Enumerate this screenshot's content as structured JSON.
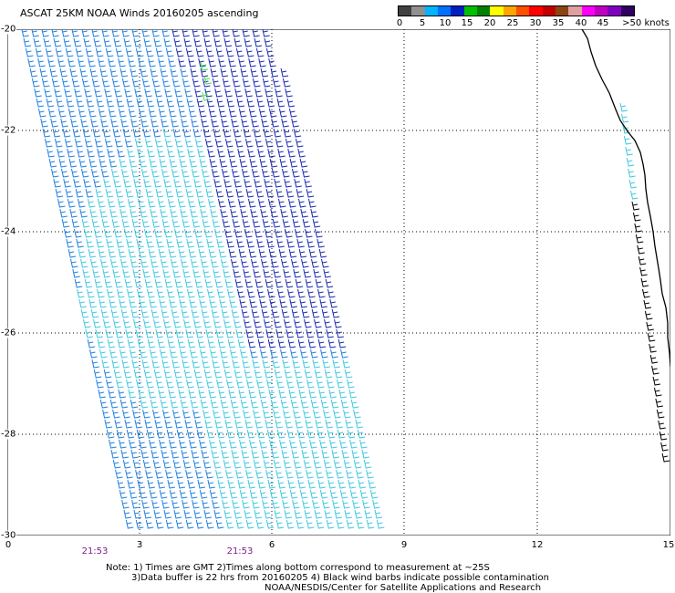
{
  "header": {
    "title": "ASCAT 25KM NOAA Winds 20160205 ascending",
    "scale_colors": [
      "#404040",
      "#909090",
      "#00b4ff",
      "#0070ff",
      "#0020c0",
      "#00c000",
      "#008000",
      "#ffff00",
      "#ffa500",
      "#ff5000",
      "#ff0000",
      "#c00000",
      "#8b4513",
      "#e0a0a0",
      "#ff00ff",
      "#c000c0",
      "#8000c0",
      "#300060"
    ],
    "scale_labels": [
      "0",
      "5",
      "10",
      "15",
      "20",
      "25",
      "30",
      "35",
      "40",
      "45",
      ">50 knots"
    ]
  },
  "map": {
    "lat_labels": [
      "-20",
      "-22",
      "-24",
      "-26",
      "-28",
      "-30"
    ],
    "lon_labels": [
      "0",
      "3",
      "6",
      "9",
      "12",
      "15"
    ],
    "time_labels": [
      "21:53",
      "21:53"
    ],
    "colors": {
      "grid": "#000000",
      "coast": "#000000",
      "slow_barb": "#40c8e0",
      "mid_barb": "#2080e0",
      "fast_barb": "#1a2ab0",
      "green_barb": "#40e040",
      "contam_barb": "#000000"
    }
  },
  "notes": {
    "line1": "Note: 1) Times are GMT 2)Times along bottom correspond to measurement at ~25S",
    "line2": "3)Data buffer is 22 hrs from 20160205 4) Black wind barbs indicate possible contamination",
    "line3": "NOAA/NESDIS/Center for Satellite Applications and Research"
  }
}
